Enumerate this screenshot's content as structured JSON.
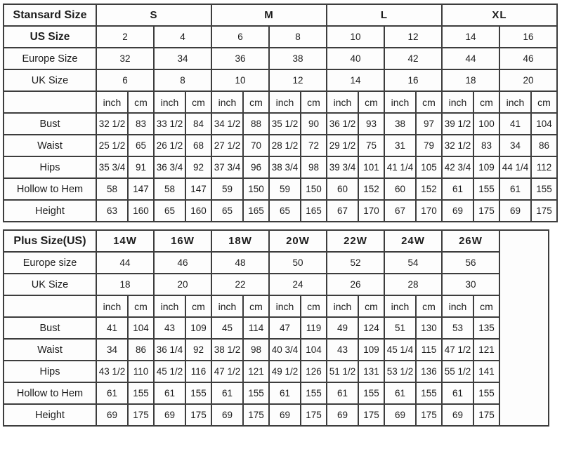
{
  "standard_table": {
    "corner_label": "Stansard Size",
    "group_colspan": 4,
    "trailing_empty_col": false,
    "size_groups": [
      {
        "label": "S"
      },
      {
        "label": "M"
      },
      {
        "label": "L"
      },
      {
        "label": "XL"
      }
    ],
    "size_rows": [
      {
        "label": "US Size",
        "bold": true,
        "values": [
          "2",
          "4",
          "6",
          "8",
          "10",
          "12",
          "14",
          "16"
        ]
      },
      {
        "label": "Europe Size",
        "bold": false,
        "values": [
          "32",
          "34",
          "36",
          "38",
          "40",
          "42",
          "44",
          "46"
        ]
      },
      {
        "label": "UK Size",
        "bold": false,
        "values": [
          "6",
          "8",
          "10",
          "12",
          "14",
          "16",
          "18",
          "20"
        ]
      }
    ],
    "unit_row": {
      "labels": [
        "inch",
        "cm"
      ]
    },
    "measurement_rows": [
      {
        "label": "Bust",
        "values": [
          "32 1/2",
          "83",
          "33 1/2",
          "84",
          "34 1/2",
          "88",
          "35 1/2",
          "90",
          "36 1/2",
          "93",
          "38",
          "97",
          "39 1/2",
          "100",
          "41",
          "104"
        ]
      },
      {
        "label": "Waist",
        "values": [
          "25 1/2",
          "65",
          "26 1/2",
          "68",
          "27 1/2",
          "70",
          "28 1/2",
          "72",
          "29 1/2",
          "75",
          "31",
          "79",
          "32 1/2",
          "83",
          "34",
          "86"
        ]
      },
      {
        "label": "Hips",
        "values": [
          "35 3/4",
          "91",
          "36 3/4",
          "92",
          "37 3/4",
          "96",
          "38 3/4",
          "98",
          "39 3/4",
          "101",
          "41 1/4",
          "105",
          "42 3/4",
          "109",
          "44 1/4",
          "112"
        ]
      },
      {
        "label": "Hollow to Hem",
        "values": [
          "58",
          "147",
          "58",
          "147",
          "59",
          "150",
          "59",
          "150",
          "60",
          "152",
          "60",
          "152",
          "61",
          "155",
          "61",
          "155"
        ]
      },
      {
        "label": "Height",
        "values": [
          "63",
          "160",
          "65",
          "160",
          "65",
          "165",
          "65",
          "165",
          "67",
          "170",
          "67",
          "170",
          "69",
          "175",
          "69",
          "175"
        ]
      }
    ]
  },
  "plus_table": {
    "corner_label": "Plus Size(US)",
    "group_colspan": 2,
    "trailing_empty_col": true,
    "size_groups": [
      {
        "label": "14W"
      },
      {
        "label": "16W"
      },
      {
        "label": "18W"
      },
      {
        "label": "20W"
      },
      {
        "label": "22W"
      },
      {
        "label": "24W"
      },
      {
        "label": "26W"
      }
    ],
    "size_rows": [
      {
        "label": "Europe size",
        "bold": false,
        "values": [
          "44",
          "46",
          "48",
          "50",
          "52",
          "54",
          "56"
        ]
      },
      {
        "label": "UK Size",
        "bold": false,
        "values": [
          "18",
          "20",
          "22",
          "24",
          "26",
          "28",
          "30"
        ]
      }
    ],
    "unit_row": {
      "labels": [
        "inch",
        "cm"
      ]
    },
    "measurement_rows": [
      {
        "label": "Bust",
        "values": [
          "41",
          "104",
          "43",
          "109",
          "45",
          "114",
          "47",
          "119",
          "49",
          "124",
          "51",
          "130",
          "53",
          "135"
        ]
      },
      {
        "label": "Waist",
        "values": [
          "34",
          "86",
          "36 1/4",
          "92",
          "38 1/2",
          "98",
          "40 3/4",
          "104",
          "43",
          "109",
          "45 1/4",
          "115",
          "47 1/2",
          "121"
        ]
      },
      {
        "label": "Hips",
        "values": [
          "43 1/2",
          "110",
          "45 1/2",
          "116",
          "47 1/2",
          "121",
          "49 1/2",
          "126",
          "51 1/2",
          "131",
          "53 1/2",
          "136",
          "55 1/2",
          "141"
        ]
      },
      {
        "label": "Hollow to Hem",
        "values": [
          "61",
          "155",
          "61",
          "155",
          "61",
          "155",
          "61",
          "155",
          "61",
          "155",
          "61",
          "155",
          "61",
          "155"
        ]
      },
      {
        "label": "Height",
        "values": [
          "69",
          "175",
          "69",
          "175",
          "69",
          "175",
          "69",
          "175",
          "69",
          "175",
          "69",
          "175",
          "69",
          "175"
        ]
      }
    ]
  }
}
